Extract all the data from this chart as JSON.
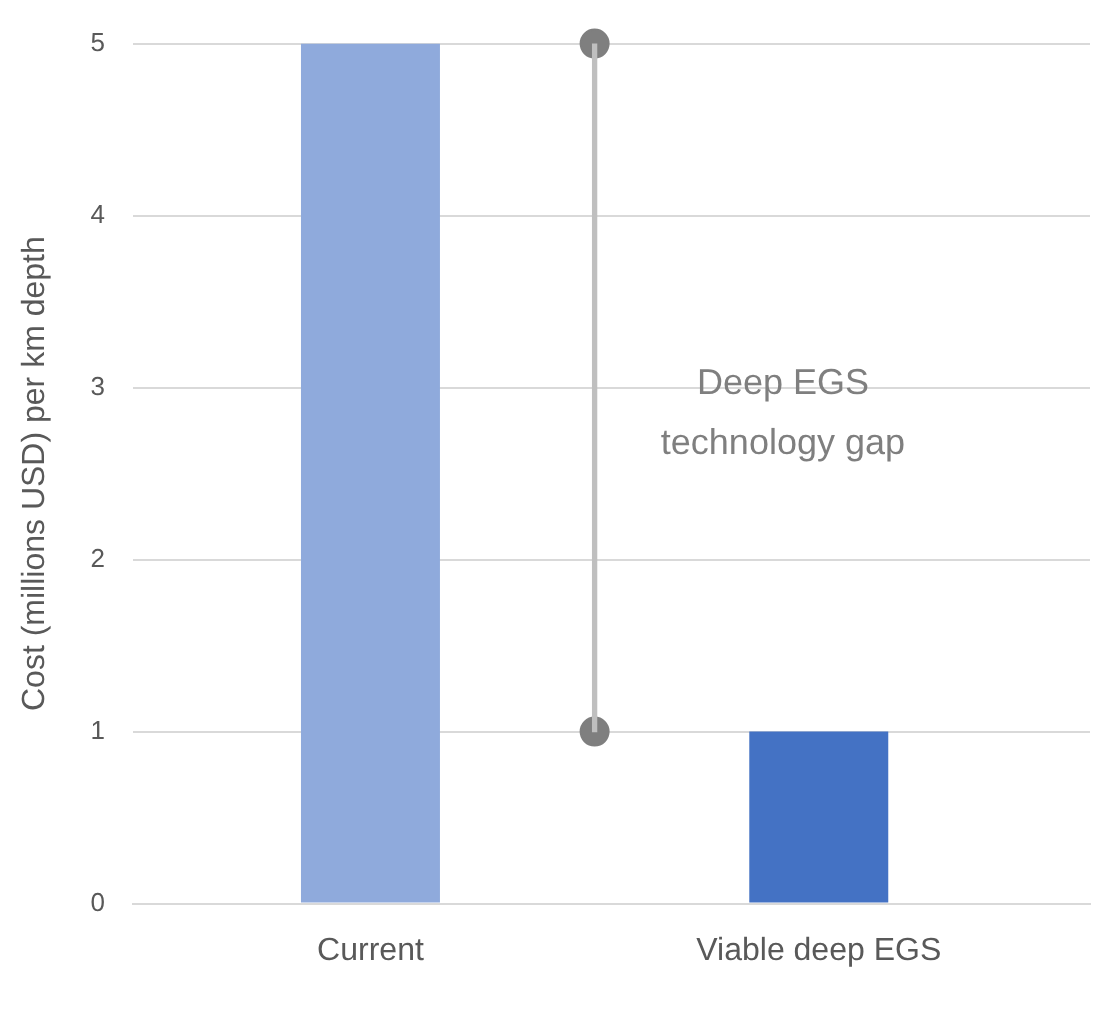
{
  "chart_data": {
    "type": "bar",
    "ylabel": "Cost (millions USD) per km depth",
    "categories": [
      "Current",
      null,
      "Viable deep EGS"
    ],
    "series": [
      {
        "values": [
          5,
          null,
          1
        ],
        "colors": [
          "#8faadc",
          null,
          "#4472c4"
        ]
      },
      {
        "type": "bar",
        "color": "#bfbfbf",
        "values": [
          null,
          4,
          null
        ],
        "base": [
          null,
          1,
          null
        ]
      },
      {
        "type": "scatter",
        "color": "#7f7f7f",
        "values": [
          null,
          5,
          null
        ]
      },
      {
        "type": "scatter",
        "color": "#7f7f7f",
        "values": [
          null,
          1,
          null
        ]
      }
    ],
    "marker": "circle",
    "ylim": [
      0,
      5
    ],
    "yticks": [
      0,
      1,
      2,
      3,
      4,
      5
    ],
    "grid": "y",
    "legend": false,
    "annotations": [
      "Deep EGS technology gap"
    ]
  }
}
